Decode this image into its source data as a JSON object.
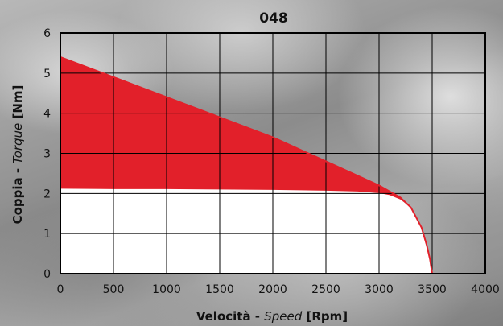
{
  "chart_data": {
    "type": "area",
    "title": "048",
    "xlabel": {
      "pre": "Velocità - ",
      "italic": "Speed",
      "post": " [Rpm]"
    },
    "ylabel": {
      "pre": "Coppia - ",
      "italic": "Torque",
      "post": " [Nm]"
    },
    "xlim": [
      0,
      4000
    ],
    "ylim": [
      0,
      6
    ],
    "xticks": [
      "0",
      "500",
      "1000",
      "1500",
      "2000",
      "2500",
      "3000",
      "3500",
      "4000"
    ],
    "yticks": [
      "0",
      "1",
      "2",
      "3",
      "4",
      "5",
      "6"
    ],
    "grid": true,
    "series": [
      {
        "color": "#e2202a",
        "x": [
          0,
          500,
          1000,
          1500,
          2000,
          2500,
          3000,
          3100,
          3200,
          3300,
          3400,
          3450,
          3480,
          3500
        ],
        "y": [
          5.4,
          4.9,
          4.4,
          3.9,
          3.4,
          2.8,
          2.2,
          2.05,
          1.9,
          1.65,
          1.15,
          0.7,
          0.35,
          0.0
        ]
      },
      {
        "color": "#ffffff",
        "x": [
          0,
          500,
          1000,
          1500,
          2000,
          2500,
          2800,
          3000,
          3100,
          3200,
          3300,
          3400,
          3450,
          3480,
          3500
        ],
        "y": [
          2.12,
          2.11,
          2.11,
          2.1,
          2.09,
          2.07,
          2.05,
          2.01,
          1.96,
          1.85,
          1.65,
          1.15,
          0.7,
          0.35,
          0.0
        ]
      }
    ]
  }
}
